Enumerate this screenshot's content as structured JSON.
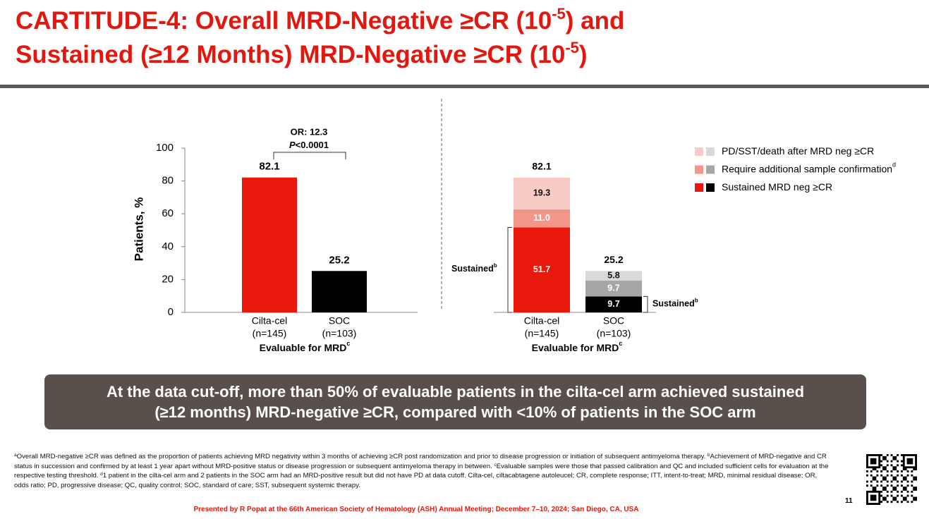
{
  "title": {
    "line1": "CARTITUDE-4: Overall MRD-Negative ≥CR (10",
    "line1_sup": "-5",
    "line1_end": ") and",
    "line2": "Sustained (≥12 Months) MRD-Negative ≥CR (10",
    "line2_sup": "-5",
    "line2_end": ")"
  },
  "chart_data": [
    {
      "type": "bar",
      "y_label": "Patients, %",
      "categories": [
        "Cilta-cel",
        "SOC"
      ],
      "category_n": [
        "(n=145)",
        "(n=103)"
      ],
      "x_label": "Evaluable for MRD",
      "x_label_sup": "c",
      "values": [
        82.1,
        25.2
      ],
      "colors": [
        "#e8180c",
        "#000000"
      ],
      "ylim": [
        0,
        100
      ],
      "yticks": [
        0,
        20,
        40,
        60,
        80,
        100
      ],
      "annotation": {
        "or": "OR: 12.3",
        "p_italic": "P",
        "p_rest": "<0.0001"
      }
    },
    {
      "type": "stacked_bar",
      "categories": [
        "Cilta-cel",
        "SOC"
      ],
      "category_n": [
        "(n=145)",
        "(n=103)"
      ],
      "x_label": "Evaluable for MRD",
      "x_label_sup": "c",
      "ylim": [
        0,
        100
      ],
      "series": [
        {
          "name": "Sustained MRD neg ≥CR",
          "colors": [
            "#e8180c",
            "#000000"
          ],
          "values": [
            51.7,
            9.7
          ]
        },
        {
          "name": "Require additional sample confirmation",
          "sup": "d",
          "colors": [
            "#f4968a",
            "#a6a6a6"
          ],
          "values": [
            11.0,
            9.7
          ],
          "value_labels": [
            "11.0",
            "9.7"
          ]
        },
        {
          "name": "PD/SST/death after MRD neg ≥CR",
          "colors": [
            "#f9cbc5",
            "#d9d9d9"
          ],
          "values": [
            19.3,
            5.8
          ]
        }
      ],
      "totals": [
        82.1,
        25.2
      ],
      "annotation": {
        "sustained": "Sustained",
        "sustained_sup": "b"
      }
    }
  ],
  "callout": [
    "At the data cut-off, more than 50% of evaluable patients in the cilta-cel arm achieved sustained",
    "(≥12 months) MRD-negative ≥CR, compared with <10% of patients in the SOC arm"
  ],
  "footnotes": [
    {
      "sup": "a",
      "text": "Overall MRD-negative ≥CR was defined as the proportion of patients achieving MRD negativity within 3 months of achieving ≥CR post randomization and prior to disease progression or initiation of subsequent antimyeloma therapy. "
    },
    {
      "sup": "b",
      "text": "Achievement of MRD-negative and CR status in succession and confirmed by at least 1 year apart without MRD-positive status or disease progression or subsequent antimyeloma therapy in between. "
    },
    {
      "sup": "c",
      "text": "Evaluable samples were those that passed calibration and QC and included sufficient cells for evaluation at the respective testing threshold. "
    },
    {
      "sup": "d",
      "text": "1 patient in the cilta-cel arm and 2 patients in the SOC arm had an MRD-positive result but did not have PD at data cutoff. Cilta-cel, ciltacabtagene autoleucel; CR, complete response; ITT, intent-to-treat; MRD, minimal residual disease; OR, odds ratio; PD, progressive disease; QC, quality control; SOC, standard of care; SST, subsequent systemic therapy."
    }
  ],
  "presenter": "Presented by R Popat at the 66th American Society of Hematology (ASH) Annual Meeting; December 7–10, 2024; San Diego, CA, USA",
  "page_number": "11"
}
